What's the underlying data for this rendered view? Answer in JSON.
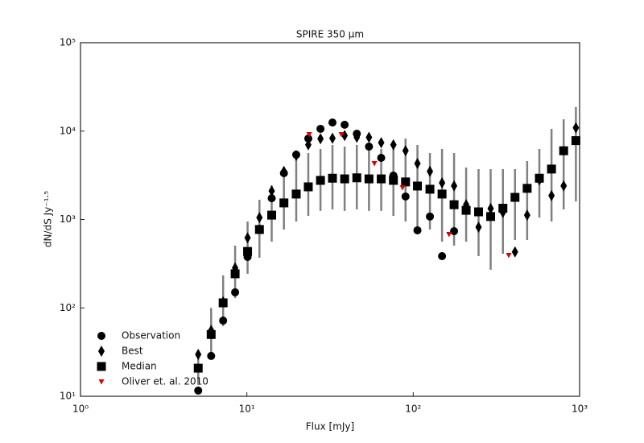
{
  "chart_data": {
    "type": "scatter",
    "title": "SPIRE 350 μm",
    "x_label": "Flux [mJy]",
    "y_label": "dN/dS Jy⁻¹·⁵",
    "log_x": true,
    "log_y": true,
    "legend": "lower left",
    "xlim": [
      1,
      1000
    ],
    "ylim": [
      10,
      100000
    ],
    "xticks": [
      {
        "value": 1,
        "label": "10⁰"
      },
      {
        "value": 10,
        "label": "10¹"
      },
      {
        "value": 100,
        "label": "10²"
      },
      {
        "value": 1000,
        "label": "10³"
      }
    ],
    "yticks": [
      {
        "value": 10,
        "label": "10¹"
      },
      {
        "value": 100,
        "label": "10²"
      },
      {
        "value": 1000,
        "label": "10³"
      },
      {
        "value": 10000,
        "label": "10⁴"
      },
      {
        "value": 100000,
        "label": "10⁵"
      }
    ],
    "x": [
      5.1,
      6.1,
      7.2,
      8.5,
      10.1,
      11.9,
      14.1,
      16.7,
      19.8,
      23.4,
      27.7,
      32.7,
      38.7,
      45.8,
      54.2,
      64.2,
      76.0,
      89.9,
      106,
      126,
      149,
      176,
      208,
      247,
      292,
      346,
      409,
      484,
      573,
      678,
      802,
      950
    ],
    "series": [
      {
        "name": "Observation",
        "marker": "circle",
        "color": "#000000",
        "values": [
          11.6,
          28.6,
          71.8,
          150,
          377,
          785,
          1740,
          3340,
          5410,
          8240,
          10600,
          12500,
          11800,
          9330,
          6680,
          4980,
          3140,
          1820,
          754,
          1080,
          385,
          738,
          null,
          null,
          null,
          null,
          null,
          null,
          null,
          null,
          null,
          null
        ]
      },
      {
        "name": "Best",
        "marker": "diamond",
        "color": "#000000",
        "values": [
          29.8,
          55.7,
          117,
          283,
          620,
          1050,
          2100,
          3500,
          5300,
          7000,
          8200,
          8300,
          8900,
          8500,
          8500,
          7400,
          7000,
          6000,
          4300,
          3500,
          2600,
          2400,
          1470,
          820,
          1330,
          1200,
          430,
          1120,
          2800,
          1860,
          2400,
          10900
        ]
      },
      {
        "name": "Median",
        "marker": "square",
        "color": "#000000",
        "error_color": "#808080",
        "values": [
          20.8,
          50,
          114,
          243,
          435,
          770,
          1120,
          1540,
          1940,
          2340,
          2770,
          2930,
          2880,
          2960,
          2880,
          2880,
          2770,
          2660,
          2390,
          2200,
          1940,
          1470,
          1270,
          1220,
          1080,
          1340,
          1780,
          2250,
          2930,
          3720,
          5990,
          7800
        ],
        "lower": [
          14,
          30,
          62,
          129,
          243,
          369,
          561,
          769,
          948,
          1100,
          1250,
          1300,
          1250,
          1300,
          1250,
          1250,
          1100,
          948,
          769,
          769,
          561,
          506,
          561,
          385,
          270,
          410,
          586,
          586,
          1050,
          948,
          1300,
          1600
        ],
        "upper": [
          30,
          100,
          233,
          506,
          948,
          1670,
          2440,
          3710,
          5080,
          5650,
          6270,
          6960,
          6680,
          6960,
          6960,
          6270,
          7260,
          8240,
          6960,
          5650,
          6270,
          5650,
          3870,
          3710,
          3710,
          3710,
          3710,
          4580,
          6270,
          10600,
          13600,
          18700
        ]
      },
      {
        "name": "Oliver et. al. 2010",
        "marker": "triangle",
        "color": "#e00000",
        "x": [
          23.7,
          37.0,
          58.4,
          86.2,
          164,
          375
        ],
        "values": [
          9140,
          9140,
          4300,
          2290,
          678,
          393
        ]
      }
    ]
  }
}
